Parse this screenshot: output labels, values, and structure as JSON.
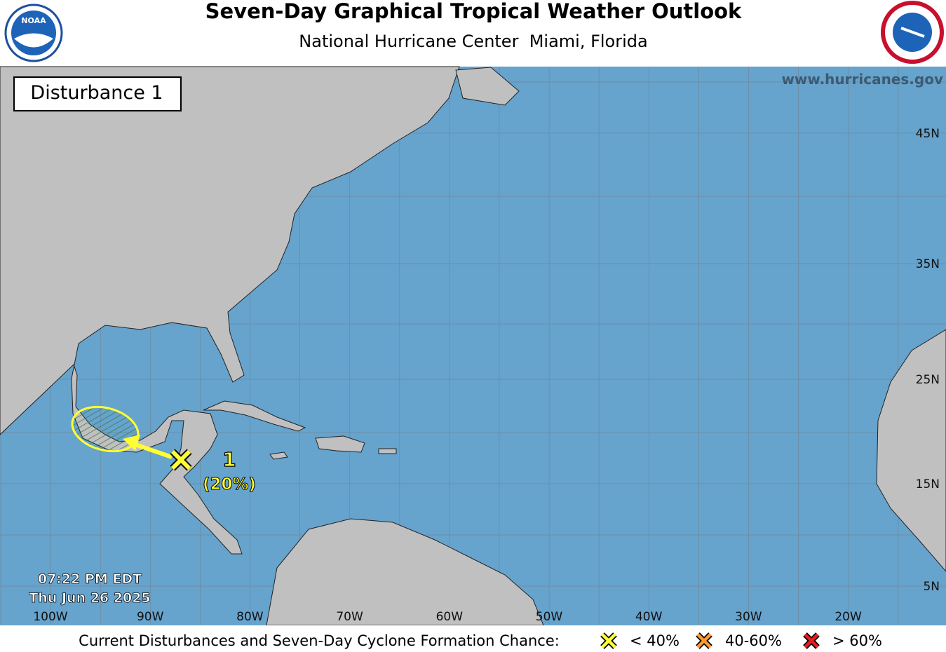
{
  "header": {
    "title": "Seven-Day Graphical Tropical Weather Outlook",
    "subtitle": "National Hurricane Center  Miami, Florida"
  },
  "map": {
    "website": "www.hurricanes.gov",
    "panel_label": "Disturbance 1",
    "disturbances": [
      {
        "id": "1",
        "chance": "(20%)"
      }
    ],
    "timestamp": {
      "time": "07:22 PM EDT",
      "date": "Thu Jun 26 2025"
    },
    "lon_labels": [
      "100W",
      "90W",
      "80W",
      "70W",
      "60W",
      "50W",
      "40W",
      "30W",
      "20W"
    ],
    "lat_labels": [
      "45N",
      "35N",
      "25N",
      "15N",
      "5N"
    ]
  },
  "legend": {
    "caption": "Current Disturbances and Seven-Day Cyclone Formation Chance:",
    "items": [
      {
        "label": "< 40%"
      },
      {
        "label": "40-60%"
      },
      {
        "label": "> 60%"
      }
    ]
  }
}
